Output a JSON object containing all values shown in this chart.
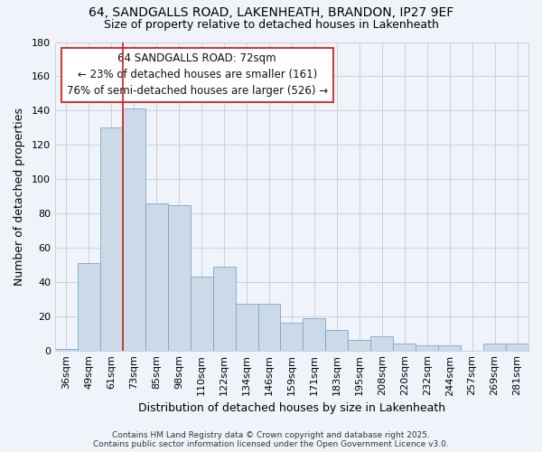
{
  "title": "64, SANDGALLS ROAD, LAKENHEATH, BRANDON, IP27 9EF",
  "subtitle": "Size of property relative to detached houses in Lakenheath",
  "xlabel": "Distribution of detached houses by size in Lakenheath",
  "ylabel": "Number of detached properties",
  "categories": [
    "36sqm",
    "49sqm",
    "61sqm",
    "73sqm",
    "85sqm",
    "98sqm",
    "110sqm",
    "122sqm",
    "134sqm",
    "146sqm",
    "159sqm",
    "171sqm",
    "183sqm",
    "195sqm",
    "208sqm",
    "220sqm",
    "232sqm",
    "244sqm",
    "257sqm",
    "269sqm",
    "281sqm"
  ],
  "values": [
    1,
    51,
    130,
    141,
    86,
    85,
    43,
    49,
    27,
    27,
    16,
    19,
    12,
    6,
    8,
    4,
    3,
    3,
    0,
    4,
    4
  ],
  "bar_color": "#ccd9e8",
  "bar_edge_color": "#7ba7cc",
  "vline_color": "#cc2222",
  "annotation_text": "64 SANDGALLS ROAD: 72sqm\n← 23% of detached houses are smaller (161)\n76% of semi-detached houses are larger (526) →",
  "annotation_box_color": "#ffffff",
  "annotation_box_edge_color": "#cc2222",
  "ylim": [
    0,
    180
  ],
  "yticks": [
    0,
    20,
    40,
    60,
    80,
    100,
    120,
    140,
    160,
    180
  ],
  "footer": "Contains HM Land Registry data © Crown copyright and database right 2025.\nContains public sector information licensed under the Open Government Licence v3.0.",
  "background_color": "#f0f4fa",
  "plot_bg_color": "#f0f4fa",
  "grid_color": "#c8cfe0",
  "title_fontsize": 10,
  "subtitle_fontsize": 9,
  "axis_label_fontsize": 9,
  "tick_fontsize": 8,
  "annotation_fontsize": 8.5,
  "footer_fontsize": 6.5
}
